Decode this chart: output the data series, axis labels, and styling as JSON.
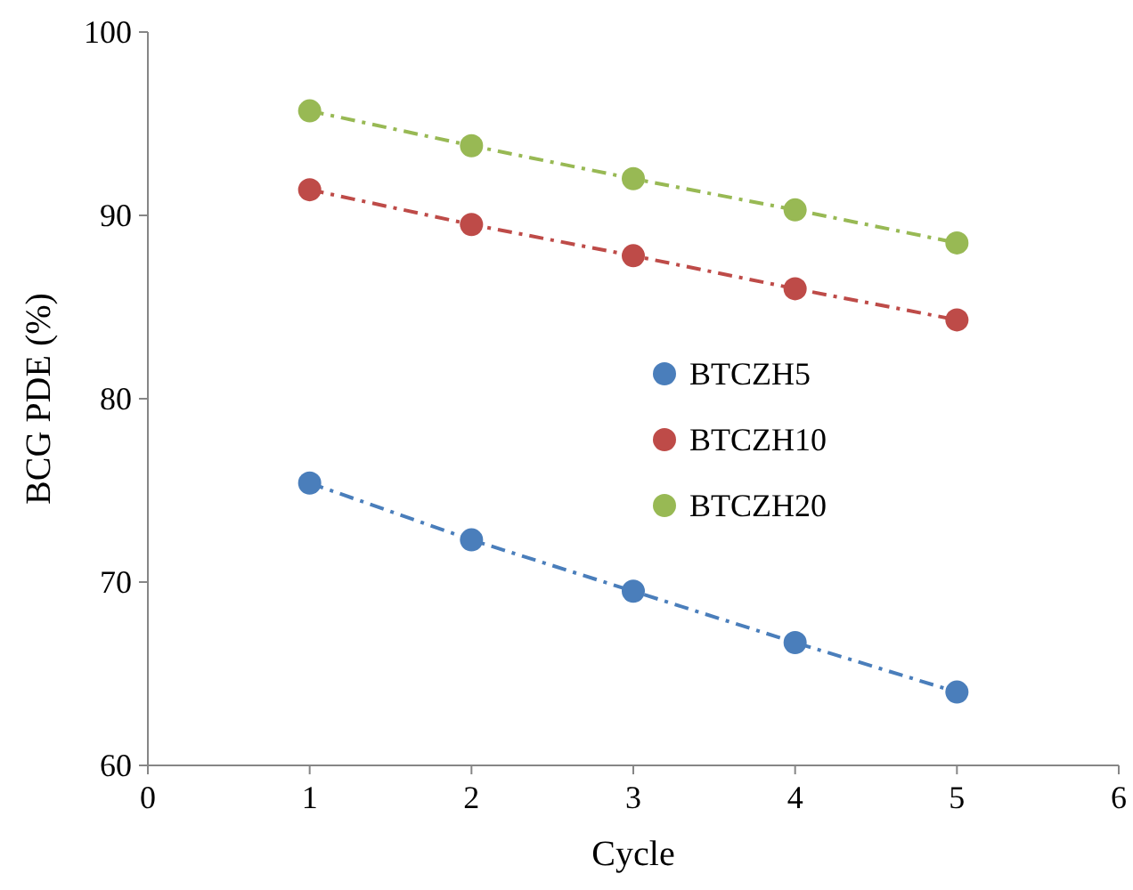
{
  "chart_data": {
    "type": "line",
    "xlabel": "Cycle",
    "ylabel": "BCG PDE (%)",
    "x": [
      1,
      2,
      3,
      4,
      5
    ],
    "series": [
      {
        "name": "BTCZH5",
        "color": "#4a7ebb",
        "values": [
          75.4,
          72.3,
          69.5,
          66.7,
          64.0
        ]
      },
      {
        "name": "BTCZH10",
        "color": "#be4b48",
        "values": [
          91.4,
          89.5,
          87.8,
          86.0,
          84.3
        ]
      },
      {
        "name": "BTCZH20",
        "color": "#98b954",
        "values": [
          95.7,
          93.8,
          92.0,
          90.3,
          88.5
        ]
      }
    ],
    "xlim": [
      0,
      6
    ],
    "xticks": [
      0,
      1,
      2,
      3,
      4,
      5,
      6
    ],
    "ylim": [
      60,
      100
    ],
    "yticks": [
      60,
      70,
      80,
      90,
      100
    ],
    "grid": false,
    "legend": "right",
    "marker": "circle",
    "line_style": "dashed"
  }
}
